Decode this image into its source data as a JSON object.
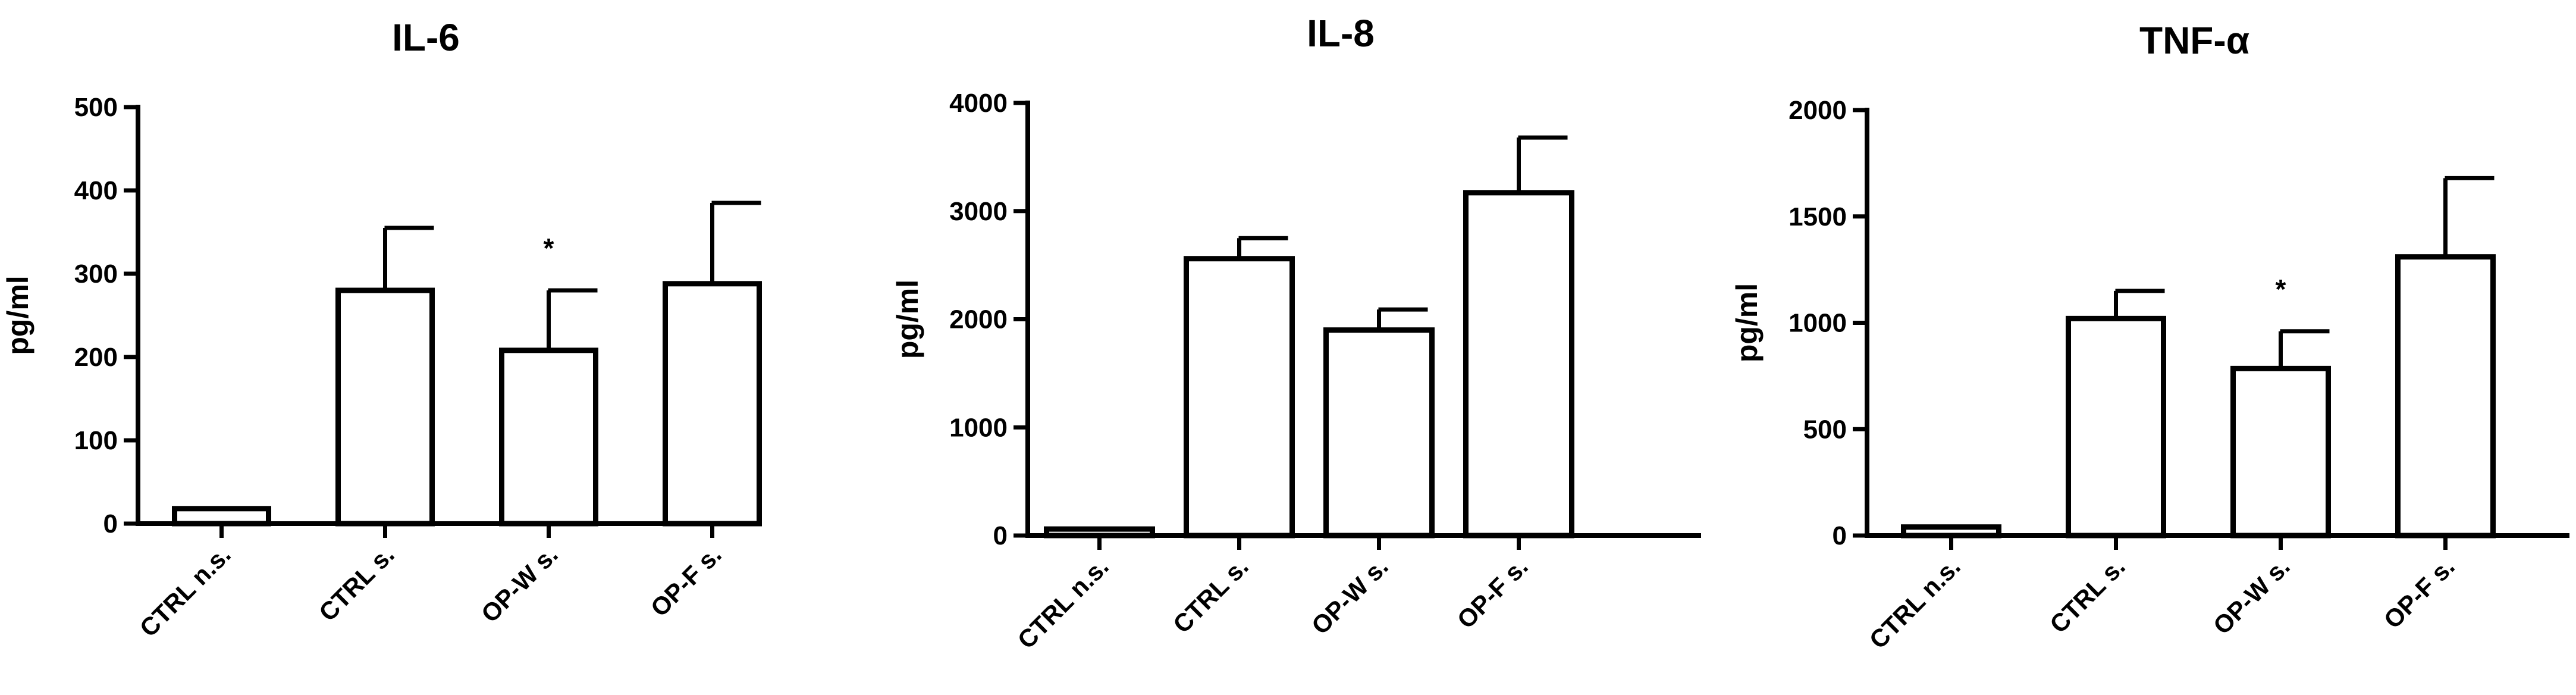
{
  "chart_data": [
    {
      "type": "bar",
      "title": "IL-6",
      "ylabel": "pg/ml",
      "xlabel": "",
      "categories": [
        "CTRL n.s.",
        "CTRL s.",
        "OP-W s.",
        "OP-F s."
      ],
      "values": [
        18,
        280,
        208,
        288
      ],
      "error": [
        0,
        75,
        72,
        97
      ],
      "ylim": [
        0,
        500
      ],
      "yticks": [
        0,
        100,
        200,
        300,
        400,
        500
      ],
      "annotations": [
        {
          "category_index": 2,
          "text": "*"
        }
      ],
      "grid": false,
      "bar_color": "#ffffff",
      "edge_color": "#000000"
    },
    {
      "type": "bar",
      "title": "IL-8",
      "ylabel": "pg/ml",
      "xlabel": "",
      "categories": [
        "CTRL n.s.",
        "CTRL s.",
        "OP-W s.",
        "OP-F s."
      ],
      "values": [
        60,
        2560,
        1900,
        3170
      ],
      "error": [
        0,
        190,
        190,
        510
      ],
      "ylim": [
        0,
        4000
      ],
      "yticks": [
        0,
        1000,
        2000,
        3000,
        4000
      ],
      "annotations": [],
      "grid": false,
      "bar_color": "#ffffff",
      "edge_color": "#000000"
    },
    {
      "type": "bar",
      "title": "TNF-α",
      "ylabel": "pg/ml",
      "xlabel": "",
      "categories": [
        "CTRL n.s.",
        "CTRL s.",
        "OP-W s.",
        "OP-F s."
      ],
      "values": [
        40,
        1020,
        785,
        1310
      ],
      "error": [
        0,
        130,
        175,
        370
      ],
      "ylim": [
        0,
        2000
      ],
      "yticks": [
        0,
        500,
        1000,
        1500,
        2000
      ],
      "annotations": [
        {
          "category_index": 2,
          "text": "*"
        }
      ],
      "grid": false,
      "bar_color": "#ffffff",
      "edge_color": "#000000"
    }
  ]
}
